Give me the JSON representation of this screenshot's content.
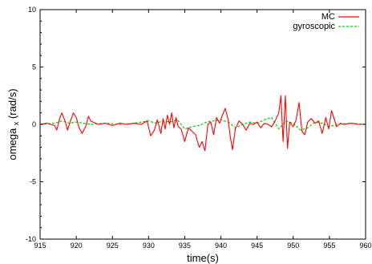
{
  "chart_data": {
    "type": "line",
    "title": "",
    "xlabel": "time(s)",
    "ylabel": "omega",
    "ylabel_sub": "x",
    "ylabel_unit": "(rad/s)",
    "xlim": [
      915,
      960
    ],
    "ylim": [
      -10,
      10
    ],
    "xticks": [
      "915",
      "920",
      "925",
      "930",
      "935",
      "940",
      "945",
      "950",
      "955",
      "960"
    ],
    "yticks": [
      "10",
      "5",
      "0",
      "-5",
      "-10"
    ],
    "legend_position": "top-right",
    "grid": false,
    "series": [
      {
        "name": "MC",
        "color": "#ff0000",
        "dash": "solid",
        "x": [
          915,
          916,
          917,
          917.3,
          917.7,
          918,
          918.5,
          918.8,
          919.2,
          919.6,
          920,
          920.4,
          920.8,
          921.3,
          921.7,
          922,
          923,
          924,
          925,
          926,
          927,
          928,
          929,
          929.8,
          930.3,
          930.8,
          931.2,
          931.7,
          932,
          932.3,
          932.6,
          932.9,
          933.2,
          933.5,
          933.8,
          934.1,
          934.5,
          935,
          935.5,
          936,
          936.5,
          937,
          937.4,
          937.8,
          938.2,
          938.6,
          939,
          939.4,
          939.8,
          940.2,
          940.6,
          941,
          941.3,
          941.6,
          942,
          942.5,
          943,
          943.5,
          944,
          944.5,
          945,
          945.5,
          946,
          946.5,
          947,
          947.5,
          948,
          948.3,
          948.6,
          948.9,
          949.2,
          949.5,
          950,
          950.4,
          950.8,
          951.2,
          951.6,
          952,
          952.5,
          953,
          953.5,
          954,
          954.5,
          954.9,
          955.3,
          955.7,
          956,
          956.5,
          957,
          958,
          959,
          960
        ],
        "values": [
          0.0,
          0.1,
          -0.1,
          -0.5,
          0.5,
          1.0,
          0.2,
          -0.5,
          0.3,
          1.0,
          0.6,
          -0.3,
          -0.8,
          -0.2,
          0.7,
          0.3,
          0.0,
          0.1,
          -0.1,
          0.1,
          0.0,
          0.1,
          0.0,
          0.3,
          -1.0,
          -0.5,
          0.4,
          -0.8,
          0.5,
          -0.4,
          0.8,
          0.0,
          1.0,
          -0.3,
          0.6,
          -0.2,
          -0.4,
          -1.5,
          -0.3,
          -0.6,
          -0.9,
          -2.0,
          -1.5,
          -2.3,
          0.0,
          0.2,
          -0.9,
          0.6,
          0.1,
          0.8,
          1.4,
          0.4,
          -1.1,
          -2.2,
          -0.4,
          0.3,
          0.0,
          -0.5,
          0.1,
          0.0,
          0.2,
          -0.3,
          0.1,
          0.0,
          -0.2,
          0.3,
          1.0,
          2.5,
          -1.5,
          2.5,
          -2.1,
          0.2,
          -0.2,
          0.4,
          1.9,
          -0.6,
          -0.9,
          0.2,
          0.5,
          0.1,
          0.3,
          -0.8,
          0.6,
          -0.4,
          1.2,
          0.4,
          -0.2,
          0.1,
          0.0,
          0.1,
          0.0,
          0.0
        ]
      },
      {
        "name": "gyroscopic",
        "color": "#00cc00",
        "dash": "dashed",
        "x": [
          915,
          917,
          918,
          919,
          920,
          921,
          922,
          924,
          926,
          928,
          929,
          930,
          931,
          932,
          933,
          934,
          935,
          936,
          937,
          938,
          939,
          940,
          941,
          942,
          943,
          944,
          945,
          946,
          947,
          948,
          949,
          950,
          951,
          952,
          953,
          954,
          955,
          956,
          958,
          960
        ],
        "values": [
          0.0,
          0.1,
          0.3,
          0.1,
          0.2,
          0.1,
          0.0,
          0.1,
          0.0,
          0.1,
          0.2,
          0.3,
          0.1,
          0.3,
          0.2,
          0.4,
          -0.4,
          -0.2,
          -0.1,
          0.2,
          0.3,
          0.4,
          0.2,
          -0.3,
          0.0,
          0.2,
          0.1,
          0.4,
          0.6,
          -0.4,
          0.3,
          0.1,
          -0.5,
          -0.3,
          0.2,
          0.1,
          -0.2,
          0.0,
          0.1,
          0.0
        ]
      }
    ]
  }
}
